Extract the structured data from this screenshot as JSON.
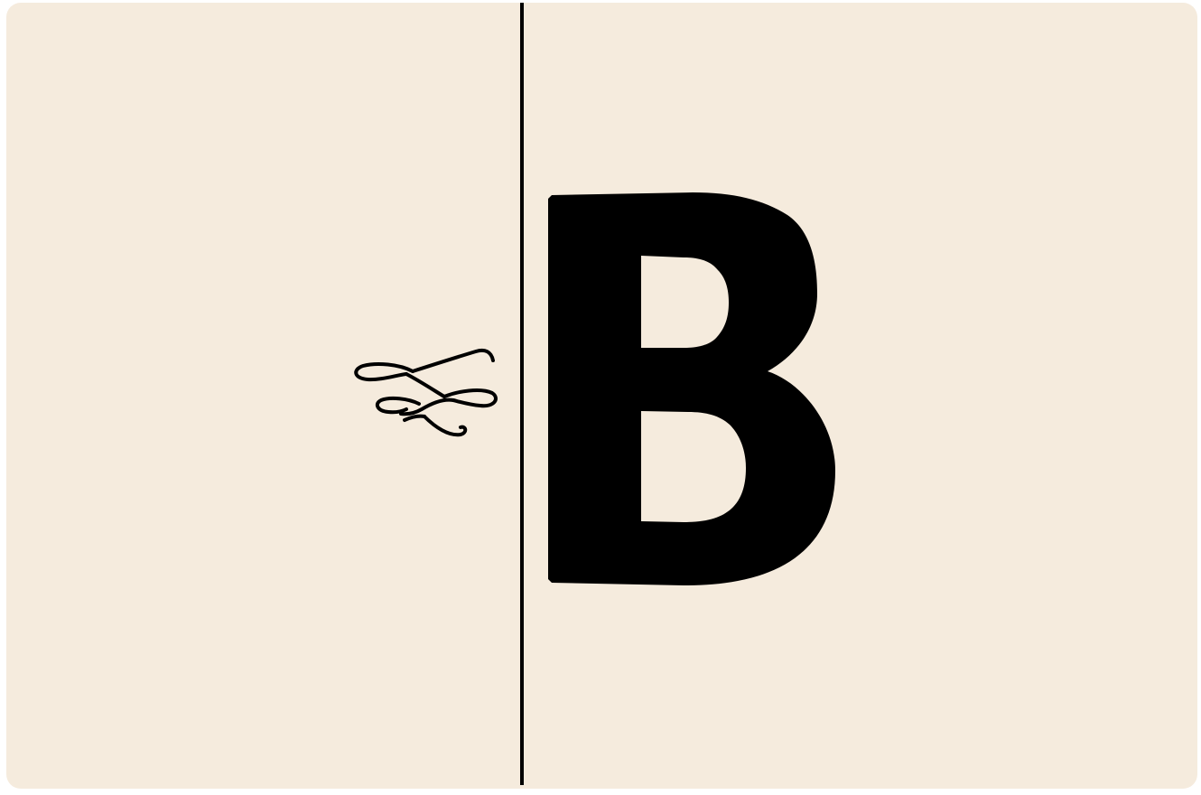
{
  "card": {
    "background_color": "#f5ebdd",
    "divider_color": "#000000"
  },
  "left_panel": {
    "ornament": {
      "icon": "scissors-flourish-icon",
      "color": "#000000"
    }
  },
  "right_panel": {
    "letter": "B",
    "color": "#000000"
  }
}
